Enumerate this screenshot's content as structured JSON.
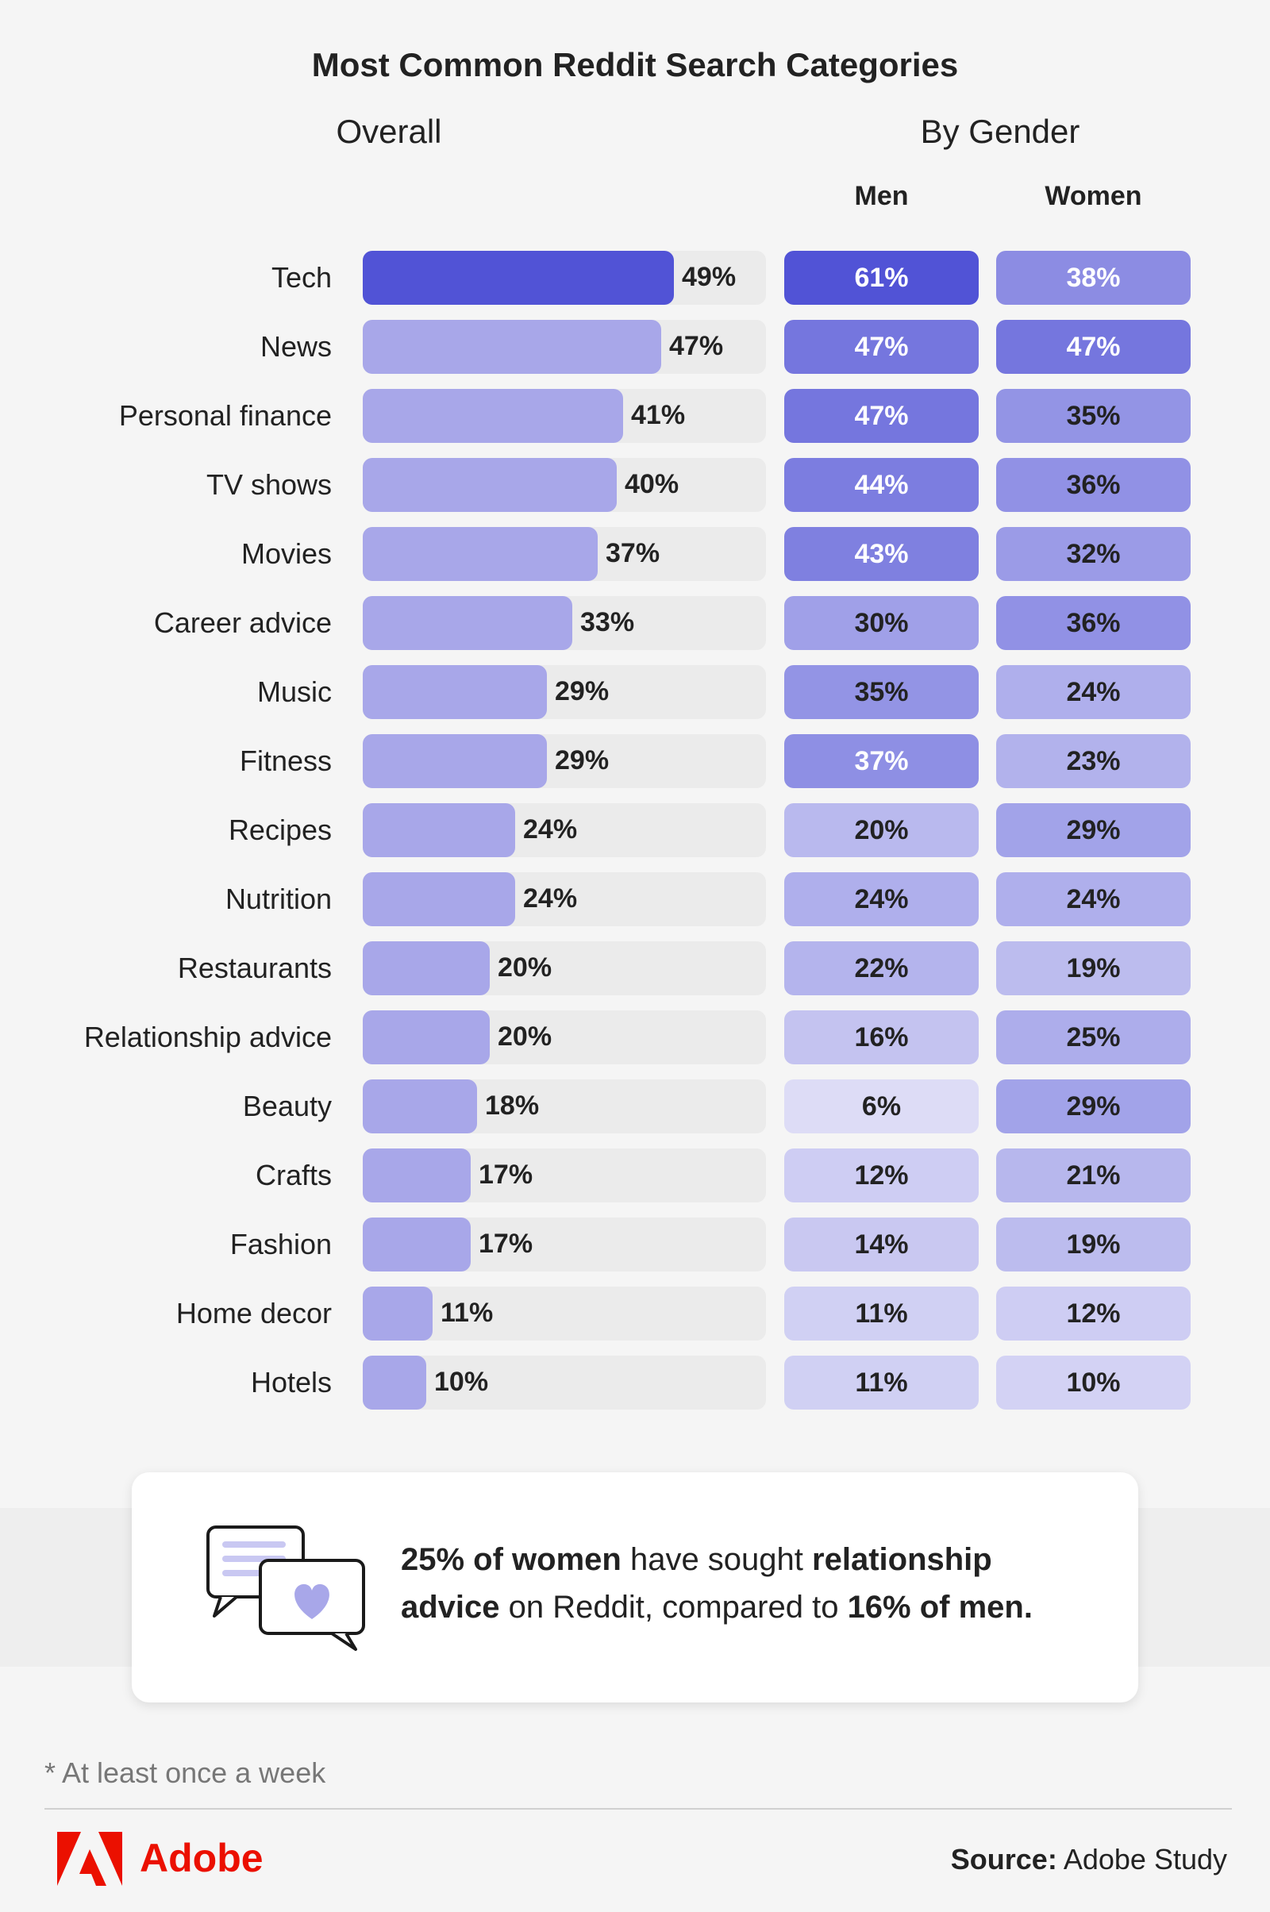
{
  "title": "Most Common Reddit Search Categories",
  "headers": {
    "overall": "Overall",
    "by_gender": "By Gender",
    "men": "Men",
    "women": "Women"
  },
  "chart_data": {
    "type": "bar",
    "title": "Most Common Reddit Search Categories",
    "categories": [
      "Tech",
      "News",
      "Personal finance",
      "TV shows",
      "Movies",
      "Career advice",
      "Music",
      "Fitness",
      "Recipes",
      "Nutrition",
      "Restaurants",
      "Relationship advice",
      "Beauty",
      "Crafts",
      "Fashion",
      "Home decor",
      "Hotels"
    ],
    "xlim": [
      0,
      100
    ],
    "series": [
      {
        "name": "Overall",
        "values": [
          49,
          47,
          41,
          40,
          37,
          33,
          29,
          29,
          24,
          24,
          20,
          20,
          18,
          17,
          17,
          11,
          10
        ]
      },
      {
        "name": "Men",
        "values": [
          61,
          47,
          47,
          44,
          43,
          30,
          35,
          37,
          20,
          24,
          22,
          16,
          6,
          12,
          14,
          11,
          11
        ]
      },
      {
        "name": "Women",
        "values": [
          38,
          47,
          35,
          36,
          32,
          36,
          24,
          23,
          29,
          24,
          19,
          25,
          29,
          21,
          19,
          12,
          10
        ]
      }
    ],
    "value_suffix": "%",
    "colors": {
      "highlight": "#5153d6",
      "bar": "#a8a7e9",
      "track": "#ebebeb",
      "heat_dark": "#5153d6",
      "heat_light": "#dddcf6"
    }
  },
  "callout": {
    "icon": "chat-heart-icon",
    "parts": [
      {
        "text": "25% of women",
        "bold": true
      },
      {
        "text": " have sought ",
        "bold": false
      },
      {
        "text": "relationship advice",
        "bold": true
      },
      {
        "text": " on Reddit, compared to ",
        "bold": false
      },
      {
        "text": "16% of men.",
        "bold": true
      }
    ]
  },
  "footnote": "* At least once a week",
  "brand": {
    "name": "Adobe",
    "color": "#eb1000",
    "logo": "adobe-logo-icon"
  },
  "source": {
    "label": "Source:",
    "value": "Adobe Study"
  }
}
